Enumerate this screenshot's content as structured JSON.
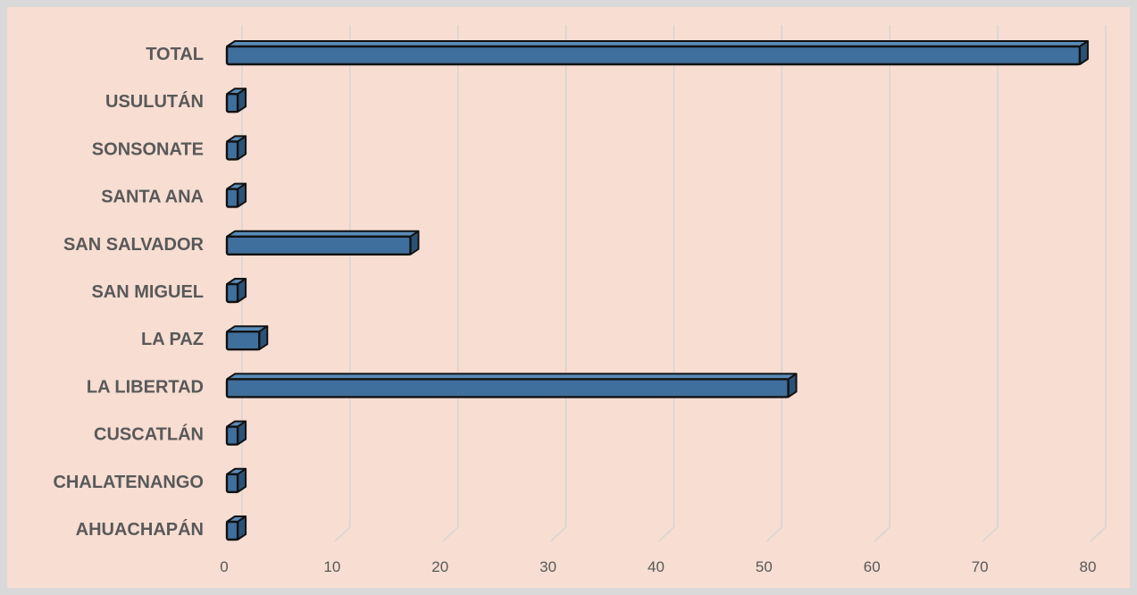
{
  "chart_data": {
    "type": "bar",
    "orientation": "horizontal",
    "style": "3d",
    "categories": [
      "TOTAL",
      "USULUTÁN",
      "SONSONATE",
      "SANTA ANA",
      "SAN SALVADOR",
      "SAN MIGUEL",
      "LA PAZ",
      "LA LIBERTAD",
      "CUSCATLÁN",
      "CHALATENANGO",
      "AHUACHAPÁN"
    ],
    "values": [
      79,
      1,
      1,
      1,
      17,
      1,
      3,
      52,
      1,
      1,
      1
    ],
    "xlim": [
      0,
      80
    ],
    "xticks": [
      "0",
      "10",
      "20",
      "30",
      "40",
      "50",
      "60",
      "70",
      "80"
    ],
    "title": "",
    "xlabel": "",
    "ylabel": "",
    "grid": "vertical",
    "legend": "none",
    "colors": {
      "bar_front": "#3f6f9c",
      "bar_side": "#2b5276",
      "bar_top": "#5a8bb8",
      "bar_outline": "#111111",
      "plot_background": "#f7ddd2",
      "page_background": "#d9d9d9",
      "grid": "#d4d4d4",
      "text": "#595959"
    }
  }
}
